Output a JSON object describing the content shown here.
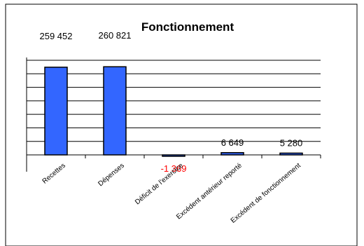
{
  "chart_data": {
    "type": "bar",
    "title": "Fonctionnement",
    "categories": [
      "Recettes",
      "Dépenses",
      "Déficit de l'exercice",
      "Excédent antérieur reporté",
      "Excédent de fonctionnement"
    ],
    "values": [
      259452,
      260821,
      -1369,
      6649,
      5280
    ],
    "data_labels": [
      "259 452",
      "260 821",
      "-1 369",
      "6 649",
      "5 280"
    ],
    "ylim": [
      -35000,
      280000
    ],
    "grid": true,
    "legend": "none",
    "colors": {
      "bar_fill": "#3366ff",
      "bar_stroke": "#000000",
      "negative_label": "#ff0000",
      "label": "#000000",
      "grid": "#000000"
    }
  }
}
